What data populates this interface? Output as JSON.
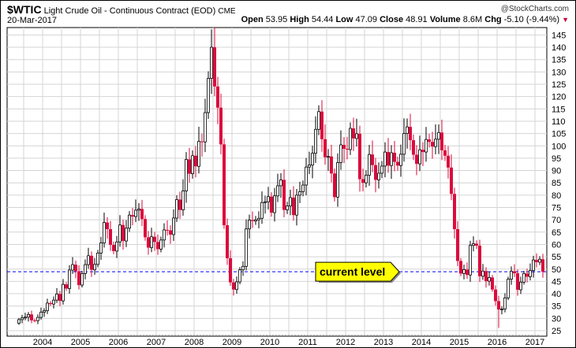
{
  "header": {
    "symbol": "$WTIC",
    "name": "Light Crude Oil - Continuous Contract (EOD)",
    "exchange": "CME",
    "date": "20-Mar-2017",
    "watermark": "@StockCharts.com",
    "open_label": "Open",
    "open": "53.95",
    "high_label": "High",
    "high": "54.44",
    "low_label": "Low",
    "low": "47.09",
    "close_label": "Close",
    "close": "48.91",
    "volume_label": "Volume",
    "volume": "8.6M",
    "chg_label": "Chg",
    "chg": "-5.10 (-9.44%)",
    "chg_icon": "triangle-down"
  },
  "chart_data": {
    "type": "candlestick",
    "interval": "monthly",
    "start": "2003-05",
    "title": "$WTIC Light Crude Oil - Continuous Contract (EOD)",
    "ylim": [
      22,
      148
    ],
    "yticks": [
      25,
      30,
      35,
      40,
      45,
      50,
      55,
      60,
      65,
      70,
      75,
      80,
      85,
      90,
      95,
      100,
      105,
      110,
      115,
      120,
      125,
      130,
      135,
      140,
      145
    ],
    "xticks": [
      "2004",
      "2005",
      "2006",
      "2007",
      "2008",
      "2009",
      "2010",
      "2011",
      "2012",
      "2013",
      "2014",
      "2015",
      "2016",
      "2017"
    ],
    "closes": [
      29.5,
      30.2,
      30.5,
      31.6,
      29.2,
      29.1,
      30.4,
      32.5,
      33.1,
      36.2,
      35.8,
      37.4,
      39.9,
      37.1,
      43.8,
      42.1,
      49.6,
      51.8,
      49.1,
      43.5,
      48.2,
      51.8,
      55.4,
      49.7,
      51.9,
      56.5,
      60.6,
      68.9,
      66.2,
      59.8,
      57.3,
      61.0,
      67.9,
      61.4,
      66.6,
      71.9,
      71.3,
      73.9,
      74.4,
      70.3,
      62.9,
      58.7,
      63.1,
      61.0,
      58.1,
      61.8,
      65.9,
      65.7,
      64.0,
      70.7,
      78.2,
      74.0,
      81.7,
      94.5,
      88.7,
      96.0,
      91.7,
      101.8,
      101.6,
      113.5,
      127.4,
      140.0,
      124.1,
      115.5,
      100.6,
      67.8,
      54.4,
      44.6,
      41.7,
      44.8,
      49.7,
      51.1,
      66.3,
      69.9,
      69.5,
      70.0,
      70.6,
      77.0,
      77.3,
      79.4,
      72.9,
      79.7,
      83.8,
      86.2,
      74.0,
      75.6,
      79.0,
      71.9,
      80.0,
      81.4,
      84.1,
      91.4,
      92.2,
      97.0,
      106.7,
      113.9,
      102.7,
      95.4,
      95.7,
      88.8,
      79.2,
      93.2,
      100.4,
      98.8,
      98.5,
      107.1,
      103.0,
      104.9,
      86.5,
      85.0,
      88.1,
      96.5,
      92.2,
      86.2,
      88.9,
      91.8,
      97.5,
      92.0,
      97.2,
      93.5,
      92.0,
      96.6,
      105.0,
      107.7,
      102.3,
      96.4,
      92.7,
      98.4,
      97.5,
      102.6,
      101.6,
      99.7,
      102.7,
      105.4,
      98.2,
      96.0,
      91.2,
      80.5,
      66.2,
      53.3,
      48.2,
      49.8,
      47.6,
      59.6,
      60.3,
      59.5,
      47.1,
      49.2,
      45.1,
      46.6,
      41.7,
      37.0,
      33.6,
      33.8,
      38.3,
      45.9,
      49.1,
      48.3,
      41.6,
      44.7,
      48.2,
      46.9,
      49.4,
      53.7,
      52.8,
      54.0,
      48.9
    ],
    "first_open": 28.0,
    "range_pct": 0.045,
    "peak_high": 147.3,
    "low_2016": 26.1,
    "current_level": 48.91,
    "annotation": "current level",
    "colors": {
      "up_body": "#ffffff",
      "down_body": "#dc0a3c",
      "wick": "#000000",
      "current_line": "#0000ff",
      "callout": "#ffff00",
      "grid": "#d4d4d4"
    }
  }
}
